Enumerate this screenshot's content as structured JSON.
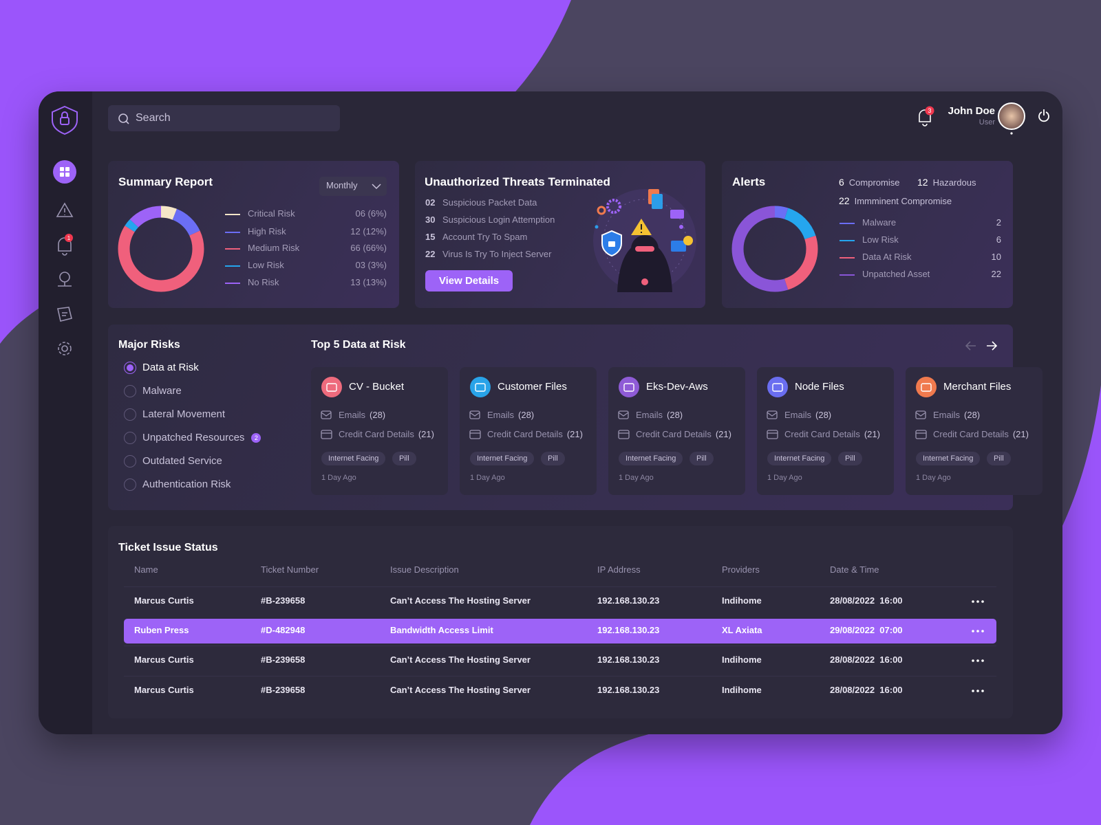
{
  "search": {
    "placeholder": "Search"
  },
  "header": {
    "notification_badge": "3",
    "user_name": "John Doe",
    "user_role": "User"
  },
  "sidebar": {
    "alert_badge": "1"
  },
  "summary": {
    "title": "Summary Report",
    "period": "Monthly",
    "items": [
      {
        "label": "Critical Risk",
        "value": 6,
        "value_label": "06 (6%)",
        "color": "#f5e6c8"
      },
      {
        "label": "High Risk",
        "value": 12,
        "value_label": "12 (12%)",
        "color": "#6b6ef5"
      },
      {
        "label": "Medium Risk",
        "value": 66,
        "value_label": "66 (66%)",
        "color": "#f0607c"
      },
      {
        "label": "Low Risk",
        "value": 3,
        "value_label": "03 (3%)",
        "color": "#25a6ee"
      },
      {
        "label": "No Risk",
        "value": 13,
        "value_label": "13 (13%)",
        "color": "#9d63f7"
      }
    ]
  },
  "threats": {
    "title": "Unauthorized Threats Terminated",
    "items": [
      {
        "count": "02",
        "text": "Suspicious Packet Data"
      },
      {
        "count": "30",
        "text": "Suspicious Login Attemption"
      },
      {
        "count": "15",
        "text": "Account Try To Spam"
      },
      {
        "count": "22",
        "text": "Virus Is Try To Inject Server"
      }
    ],
    "button": "View Details"
  },
  "alerts": {
    "title": "Alerts",
    "stats": [
      {
        "count": 6,
        "label": "Compromise"
      },
      {
        "count": 12,
        "label": "Hazardous"
      },
      {
        "count": 22,
        "label": "Immminent Compromise"
      }
    ],
    "items": [
      {
        "label": "Malware",
        "value": 2,
        "color": "#6b6ef5"
      },
      {
        "label": "Low Risk",
        "value": 6,
        "color": "#25a6ee"
      },
      {
        "label": "Data At Risk",
        "value": 10,
        "color": "#f0607c"
      },
      {
        "label": "Unpatched Asset",
        "value": 22,
        "color": "#8a55d8"
      }
    ]
  },
  "major_risks": {
    "title": "Major Risks",
    "selected": 0,
    "items": [
      {
        "label": "Data at Risk"
      },
      {
        "label": "Malware"
      },
      {
        "label": "Lateral Movement"
      },
      {
        "label": "Unpatched Resources",
        "badge": "2"
      },
      {
        "label": "Outdated Service"
      },
      {
        "label": "Authentication Risk"
      }
    ]
  },
  "top_data": {
    "title": "Top 5 Data at Risk",
    "cards": [
      {
        "name": "CV - Bucket",
        "color": "#ee6b7d",
        "details": [
          {
            "label": "Emails",
            "count": "(28)"
          },
          {
            "label": "Credit Card Details",
            "count": "(21)"
          }
        ],
        "tags": [
          "Internet Facing",
          "Pill"
        ],
        "time": "1 Day Ago"
      },
      {
        "name": "Customer Files",
        "color": "#29a3e8",
        "details": [
          {
            "label": "Emails",
            "count": "(28)"
          },
          {
            "label": "Credit Card Details",
            "count": "(21)"
          }
        ],
        "tags": [
          "Internet Facing",
          "Pill"
        ],
        "time": "1 Day Ago"
      },
      {
        "name": "Eks-Dev-Aws",
        "color": "#8f5bd6",
        "details": [
          {
            "label": "Emails",
            "count": "(28)"
          },
          {
            "label": "Credit Card Details",
            "count": "(21)"
          }
        ],
        "tags": [
          "Internet Facing",
          "Pill"
        ],
        "time": "1 Day Ago"
      },
      {
        "name": "Node Files",
        "color": "#6a6ef0",
        "details": [
          {
            "label": "Emails",
            "count": "(28)"
          },
          {
            "label": "Credit Card Details",
            "count": "(21)"
          }
        ],
        "tags": [
          "Internet Facing",
          "Pill"
        ],
        "time": "1 Day Ago"
      },
      {
        "name": "Merchant Files",
        "color": "#f07a4e",
        "details": [
          {
            "label": "Emails",
            "count": "(28)"
          },
          {
            "label": "Credit Card Details",
            "count": "(21)"
          }
        ],
        "tags": [
          "Internet Facing",
          "Pill"
        ],
        "time": "1 Day Ago"
      }
    ]
  },
  "tickets": {
    "title": "Ticket Issue Status",
    "highlighted": 1,
    "columns": [
      "Name",
      "Ticket Number",
      "Issue Description",
      "IP Address",
      "Providers",
      "Date & Time"
    ],
    "rows": [
      [
        "Marcus Curtis",
        "#B-239658",
        "Can’t Access The Hosting Server",
        "192.168.130.23",
        "Indihome",
        "28/08/2022  16:00"
      ],
      [
        "Ruben Press",
        "#D-482948",
        "Bandwidth Access Limit",
        "192.168.130.23",
        "XL Axiata",
        "29/08/2022  07:00"
      ],
      [
        "Marcus Curtis",
        "#B-239658",
        "Can’t Access The Hosting Server",
        "192.168.130.23",
        "Indihome",
        "28/08/2022  16:00"
      ],
      [
        "Marcus Curtis",
        "#B-239658",
        "Can’t Access The Hosting Server",
        "192.168.130.23",
        "Indihome",
        "28/08/2022  16:00"
      ]
    ]
  }
}
